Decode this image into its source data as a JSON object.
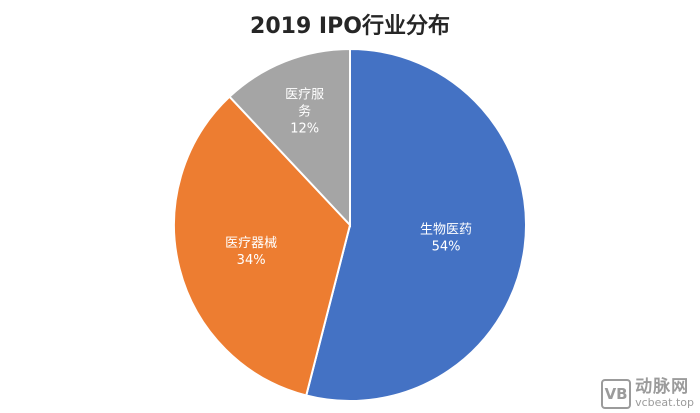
{
  "chart_data": {
    "type": "pie",
    "title": "2019 IPO行业分布",
    "slices": [
      {
        "name": "生物医药",
        "value": 54,
        "label": "54%",
        "color": "#4472C4"
      },
      {
        "name": "医疗器械",
        "value": 34,
        "label": "34%",
        "color": "#ED7D31"
      },
      {
        "name": "医疗服务",
        "value": 12,
        "label": "12%",
        "color": "#A5A5A5"
      }
    ],
    "start_angle_deg": 0,
    "direction": "clockwise"
  },
  "watermark": {
    "mark": "VB",
    "name": "动脉网",
    "url": "vcbeat.top"
  }
}
